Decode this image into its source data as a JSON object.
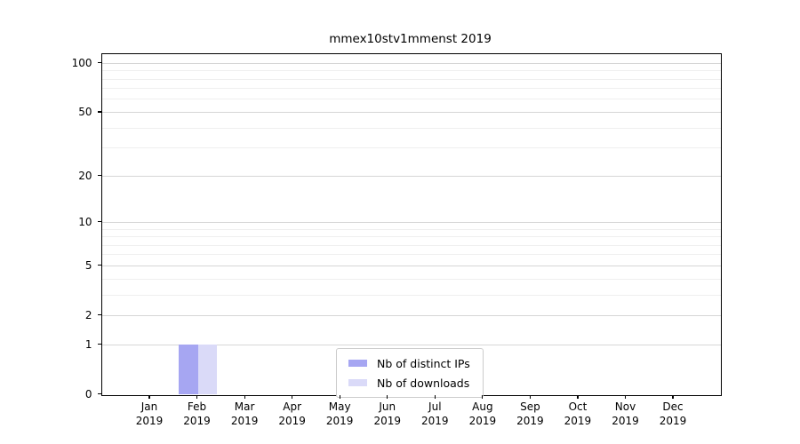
{
  "title": "mmex10stv1mmenst 2019",
  "legend": {
    "items": [
      {
        "label": "Nb of distinct IPs",
        "color": "#a6a6f2"
      },
      {
        "label": "Nb of downloads",
        "color": "#dadaf8"
      }
    ]
  },
  "y_axis": {
    "ticks": [
      0,
      1,
      2,
      5,
      10,
      20,
      50,
      100
    ],
    "minor_gridlines": [
      3,
      4,
      6,
      7,
      8,
      9,
      30,
      40,
      60,
      70,
      80,
      90
    ],
    "scale": "log1p",
    "max": 115
  },
  "x_axis": {
    "months": [
      "Jan",
      "Feb",
      "Mar",
      "Apr",
      "May",
      "Jun",
      "Jul",
      "Aug",
      "Sep",
      "Oct",
      "Nov",
      "Dec"
    ],
    "year": "2019"
  },
  "colors": {
    "grid_major": "#d6d6d6",
    "grid_minor": "#efefef",
    "axis": "#000000",
    "legend_border": "#cccccc",
    "background": "#ffffff",
    "bar_distinct_ips": "#a6a6f2",
    "bar_downloads": "#dadaf8"
  },
  "chart_data": {
    "type": "bar",
    "title": "mmex10stv1mmenst 2019",
    "categories": [
      "Jan 2019",
      "Feb 2019",
      "Mar 2019",
      "Apr 2019",
      "May 2019",
      "Jun 2019",
      "Jul 2019",
      "Aug 2019",
      "Sep 2019",
      "Oct 2019",
      "Nov 2019",
      "Dec 2019"
    ],
    "series": [
      {
        "name": "Nb of distinct IPs",
        "color": "#a6a6f2",
        "values": [
          0,
          1,
          0,
          0,
          0,
          0,
          0,
          0,
          0,
          0,
          0,
          0
        ]
      },
      {
        "name": "Nb of downloads",
        "color": "#dadaf8",
        "values": [
          0,
          1,
          0,
          0,
          0,
          0,
          0,
          0,
          0,
          0,
          0,
          0
        ]
      }
    ],
    "xlabel": "",
    "ylabel": "",
    "yscale": "log1p",
    "y_ticks": [
      0,
      1,
      2,
      5,
      10,
      20,
      50,
      100
    ],
    "ylim": [
      0,
      115
    ],
    "grid": true,
    "legend_position": "lower center"
  }
}
